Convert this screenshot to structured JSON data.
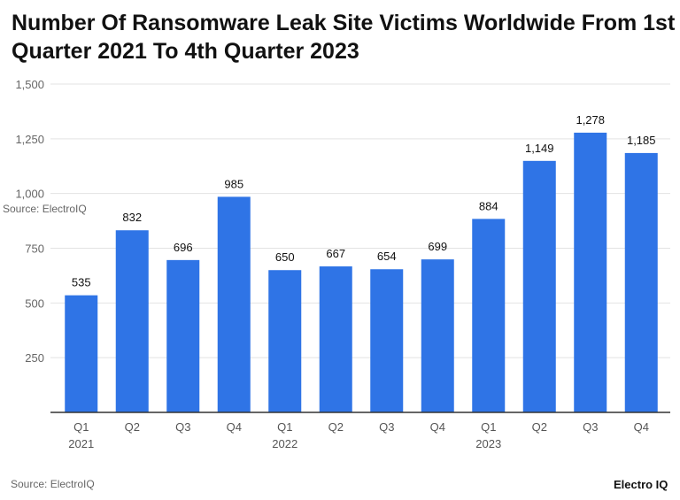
{
  "chart_data": {
    "type": "bar",
    "title": "Number Of Ransomware Leak Site Victims Worldwide From 1st Quarter 2021 To 4th Quarter 2023",
    "categories": [
      "Q1 2021",
      "Q2",
      "Q3",
      "Q4",
      "Q1 2022",
      "Q2",
      "Q3",
      "Q4",
      "Q1 2023",
      "Q2",
      "Q3",
      "Q4"
    ],
    "tick_labels": [
      [
        "Q1",
        "2021"
      ],
      [
        "Q2",
        ""
      ],
      [
        "Q3",
        ""
      ],
      [
        "Q4",
        ""
      ],
      [
        "Q1",
        "2022"
      ],
      [
        "Q2",
        ""
      ],
      [
        "Q3",
        ""
      ],
      [
        "Q4",
        ""
      ],
      [
        "Q1",
        "2023"
      ],
      [
        "Q2",
        ""
      ],
      [
        "Q3",
        ""
      ],
      [
        "Q4",
        ""
      ]
    ],
    "values": [
      535,
      832,
      696,
      985,
      650,
      667,
      654,
      699,
      884,
      1149,
      1278,
      1185
    ],
    "data_labels": [
      "535",
      "832",
      "696",
      "985",
      "650",
      "667",
      "654",
      "699",
      "884",
      "1,149",
      "1,278",
      "1,185"
    ],
    "yticks": [
      250,
      500,
      750,
      1000,
      1250,
      1500
    ],
    "ytick_labels": [
      "250",
      "500",
      "750",
      "1,000",
      "1,250",
      "1,500"
    ],
    "ylim": [
      0,
      1500
    ],
    "xlabel": "",
    "ylabel": "",
    "grid": true,
    "legend": "none",
    "bar_color": "#2f74e6"
  },
  "source_overlay": "Source: ElectroIQ",
  "source": "Source: ElectroIQ",
  "logo_text": "Electro IQ"
}
